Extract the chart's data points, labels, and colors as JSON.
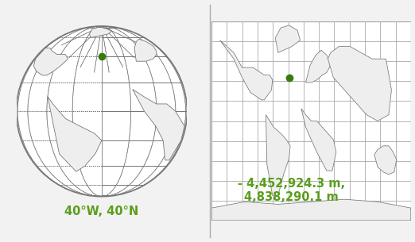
{
  "bg_color": "#f2f2f2",
  "globe_label": "40°W, 40°N",
  "proj_label": "- 4,452,924.3 m,\n4,838,290.1 m",
  "label_color": "#5a9e1a",
  "label_fontsize": 10.5,
  "divider_color": "#aaaaaa",
  "dot_color": "#3a7a0a",
  "outline_color": "#777777",
  "land_fill": "#eeeeee",
  "grid_color": "#aaaaaa",
  "grid_linewidth": 0.6
}
